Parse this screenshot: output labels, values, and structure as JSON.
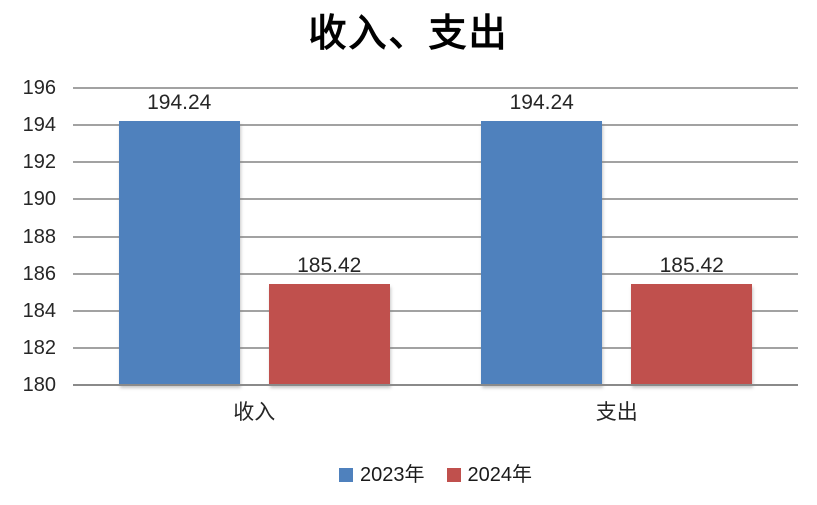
{
  "chart_data": {
    "type": "bar",
    "title": "收入、支出",
    "categories": [
      "收入",
      "支出"
    ],
    "series": [
      {
        "name": "2023年",
        "color": "#4F81BD",
        "values": [
          194.24,
          194.24
        ]
      },
      {
        "name": "2024年",
        "color": "#C0504D",
        "values": [
          185.42,
          185.42
        ]
      }
    ],
    "data_labels": [
      [
        "194.24",
        "194.24"
      ],
      [
        "185.42",
        "185.42"
      ]
    ],
    "yticks": [
      "180",
      "182",
      "184",
      "186",
      "188",
      "190",
      "192",
      "194",
      "196"
    ],
    "ylim": [
      180,
      196
    ],
    "xlabel": "",
    "ylabel": "",
    "grid": "horizontal",
    "legend_position": "bottom",
    "colors": {
      "series_2023": "#4F81BD",
      "series_2024": "#C0504D",
      "gridline": "#A2A2A2",
      "axis_line": "#8A8A8A",
      "text": "#262626",
      "background": "#FFFFFF"
    }
  }
}
